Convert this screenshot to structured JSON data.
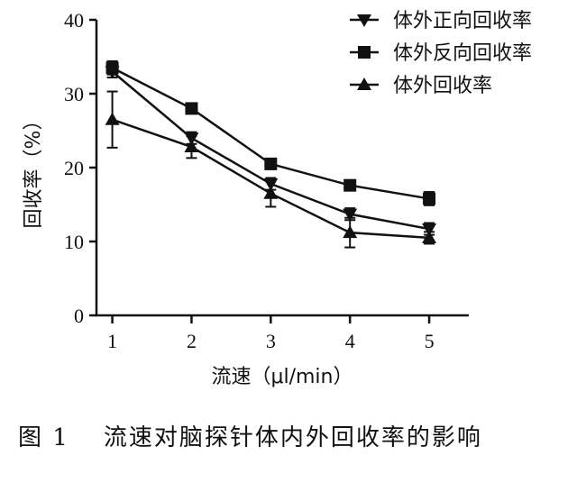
{
  "chart_data": {
    "type": "line",
    "title": "",
    "xlabel": "流速（μl/min）",
    "ylabel": "回收率（%）",
    "x": [
      1,
      2,
      3,
      4,
      5
    ],
    "xticks": [
      "1",
      "2",
      "3",
      "4",
      "5"
    ],
    "yticks": [
      "0",
      "10",
      "20",
      "30",
      "40"
    ],
    "xlim": [
      0.8,
      5.5
    ],
    "ylim": [
      0,
      40
    ],
    "legend_position": "top-right",
    "grid": false,
    "series": [
      {
        "name": "体外正向回收率",
        "marker": "triangle-down",
        "values": [
          33.0,
          24.0,
          17.8,
          13.7,
          11.7
        ],
        "error": [
          0.8,
          0.8,
          0.8,
          0.8,
          0.8
        ]
      },
      {
        "name": "体外反向回收率",
        "marker": "square",
        "values": [
          33.5,
          28.0,
          20.5,
          17.6,
          15.8
        ],
        "error": [
          0.9,
          0.6,
          0.5,
          0.6,
          0.9
        ]
      },
      {
        "name": "体外回收率",
        "marker": "triangle-up",
        "values": [
          26.5,
          22.8,
          16.5,
          11.2,
          10.5
        ],
        "error": [
          3.8,
          1.5,
          1.8,
          2.0,
          0.8
        ]
      }
    ]
  },
  "caption": {
    "label": "图 1",
    "text": "流速对脑探针体内外回收率的影响"
  },
  "colors": {
    "ink": "#111111",
    "background": "#ffffff"
  }
}
